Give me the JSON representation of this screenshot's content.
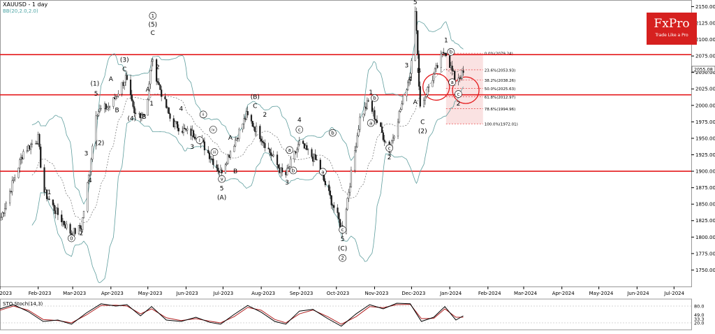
{
  "header": {
    "symbol_title": "XAUUSD - 1 day",
    "indicator": "BB(20,2.0,2.0)"
  },
  "logo": {
    "brand": "FxPro",
    "tagline": "Trade Like a Pro"
  },
  "sto_label": "STO Stoch(14,3)",
  "colors": {
    "candle": "#1a1a1a",
    "bb": "#5f9e9e",
    "bb_mid": "#555555",
    "sr_line": "#e41a1c",
    "fib_fill": "#f6cfcf",
    "sto_main": "#000000",
    "sto_signal": "#b22222"
  },
  "chart_data": {
    "type": "candlestick",
    "title": "XAUUSD - 1 day",
    "y_axis": {
      "range": [
        1725,
        2160
      ],
      "ticks": [
        "2150.00",
        "2125.00",
        "2100.00",
        "2075.00",
        "2050.00",
        "2025.00",
        "2000.00",
        "1975.00",
        "1950.00",
        "1925.00",
        "1900.00",
        "1875.00",
        "1850.00",
        "1825.00",
        "1800.00",
        "1775.00",
        "1750.00"
      ]
    },
    "x_axis": {
      "ticks": [
        "Jan-2023",
        "Feb-2023",
        "Mar-2023",
        "Apr-2023",
        "May-2023",
        "Jun-2023",
        "Jul-2023",
        "Aug-2023",
        "Sep-2023",
        "Oct-2023",
        "Nov-2023",
        "Dec-2023",
        "Jan-2024",
        "Feb-2024",
        "Mar-2024",
        "Apr-2024",
        "May-2024",
        "Jun-2024",
        "Jul-2024"
      ]
    },
    "price_path": [
      [
        "2023-01-01",
        1825
      ],
      [
        "2023-01-10",
        1875
      ],
      [
        "2023-01-20",
        1930
      ],
      [
        "2023-02-01",
        1950
      ],
      [
        "2023-02-05",
        1872
      ],
      [
        "2023-02-15",
        1840
      ],
      [
        "2023-02-28",
        1805
      ],
      [
        "2023-03-08",
        1815
      ],
      [
        "2023-03-15",
        1905
      ],
      [
        "2023-03-20",
        1990
      ],
      [
        "2023-04-01",
        2000
      ],
      [
        "2023-04-13",
        2042
      ],
      [
        "2023-04-20",
        1985
      ],
      [
        "2023-04-30",
        1990
      ],
      [
        "2023-05-04",
        2070
      ],
      [
        "2023-05-10",
        2030
      ],
      [
        "2023-05-20",
        1975
      ],
      [
        "2023-06-01",
        1960
      ],
      [
        "2023-06-10",
        1955
      ],
      [
        "2023-06-29",
        1898
      ],
      [
        "2023-07-20",
        1985
      ],
      [
        "2023-07-31",
        1955
      ],
      [
        "2023-08-20",
        1890
      ],
      [
        "2023-09-01",
        1942
      ],
      [
        "2023-09-15",
        1915
      ],
      [
        "2023-10-06",
        1810
      ],
      [
        "2023-10-20",
        1980
      ],
      [
        "2023-10-27",
        2005
      ],
      [
        "2023-11-13",
        1932
      ],
      [
        "2023-11-30",
        2050
      ],
      [
        "2023-12-04",
        2148
      ],
      [
        "2023-12-08",
        1998
      ],
      [
        "2023-12-28",
        2085
      ],
      [
        "2024-01-05",
        2040
      ],
      [
        "2024-01-12",
        2048
      ]
    ],
    "resistance_levels": [
      2077,
      2016,
      1900
    ],
    "fibonacci": {
      "from": 2079.24,
      "to": 1972.01,
      "levels": [
        {
          "label": "0.0%(2079.24)",
          "value": 2079.24
        },
        {
          "label": "23.6%(2053.93)",
          "value": 2053.93
        },
        {
          "label": "38.2%(2038.26)",
          "value": 2038.26
        },
        {
          "label": "50.0%(2025.63)",
          "value": 2025.63
        },
        {
          "label": "61.8%(2012.97)",
          "value": 2012.97
        },
        {
          "label": "78.6%(1994.96)",
          "value": 1994.96
        },
        {
          "label": "100.0%(1972.01)",
          "value": 1972.01
        }
      ]
    },
    "current_price": {
      "label": "2055.08",
      "value": 2055.08
    },
    "wave_labels": [
      {
        "text": "0",
        "date": "2023-02-28",
        "price": 1795,
        "circled": true
      },
      {
        "text": "1",
        "date": "2023-02-10",
        "price": 1865
      },
      {
        "text": "2",
        "date": "2023-03-08",
        "price": 1803
      },
      {
        "text": "3",
        "date": "2023-03-12",
        "price": 1924
      },
      {
        "text": "4",
        "date": "2023-03-15",
        "price": 1883
      },
      {
        "text": "(2)",
        "date": "2023-03-23",
        "price": 1940
      },
      {
        "text": "5",
        "date": "2023-03-20",
        "price": 2015
      },
      {
        "text": "(1)",
        "date": "2023-03-19",
        "price": 2030
      },
      {
        "text": "A",
        "date": "2023-04-01",
        "price": 2037
      },
      {
        "text": "B",
        "date": "2023-04-06",
        "price": 1990
      },
      {
        "text": "(4)",
        "date": "2023-04-18",
        "price": 1977
      },
      {
        "text": "C",
        "date": "2023-04-12",
        "price": 2052
      },
      {
        "text": "(3)",
        "date": "2023-04-12",
        "price": 2066
      },
      {
        "text": "B",
        "date": "2023-04-28",
        "price": 1980
      },
      {
        "text": "A",
        "date": "2023-05-01",
        "price": 2021
      },
      {
        "text": "1",
        "date": "2023-05-04",
        "price": 2000
      },
      {
        "text": "2",
        "date": "2023-05-09",
        "price": 2055
      },
      {
        "text": "1",
        "date": "2023-05-05",
        "price": 2133,
        "circled": true
      },
      {
        "text": "(5)",
        "date": "2023-05-05",
        "price": 2120
      },
      {
        "text": "C",
        "date": "2023-05-05",
        "price": 2107
      },
      {
        "text": "4",
        "date": "2023-05-28",
        "price": 1992
      },
      {
        "text": "3",
        "date": "2023-06-06",
        "price": 1934
      },
      {
        "text": "ii",
        "date": "2023-06-15",
        "price": 1983,
        "circled": true
      },
      {
        "text": "iv",
        "date": "2023-06-23",
        "price": 1960,
        "circled": true
      },
      {
        "text": "i",
        "date": "2023-06-12",
        "price": 1944,
        "circled": true
      },
      {
        "text": "iii",
        "date": "2023-06-24",
        "price": 1926,
        "circled": true
      },
      {
        "text": "A",
        "date": "2023-07-07",
        "price": 1948
      },
      {
        "text": "B",
        "date": "2023-07-11",
        "price": 1897
      },
      {
        "text": "v",
        "date": "2023-06-30",
        "price": 1885,
        "circled": true
      },
      {
        "text": "5",
        "date": "2023-06-30",
        "price": 1871
      },
      {
        "text": "(A)",
        "date": "2023-06-30",
        "price": 1857
      },
      {
        "text": "(B)",
        "date": "2023-07-27",
        "price": 2010
      },
      {
        "text": "C",
        "date": "2023-07-27",
        "price": 1996
      },
      {
        "text": "2",
        "date": "2023-08-04",
        "price": 1983
      },
      {
        "text": "4",
        "date": "2023-09-01",
        "price": 1975
      },
      {
        "text": "c",
        "date": "2023-09-01",
        "price": 1960,
        "circled": true
      },
      {
        "text": "a",
        "date": "2023-08-24",
        "price": 1929,
        "circled": true
      },
      {
        "text": "b",
        "date": "2023-08-27",
        "price": 1898,
        "circled": true
      },
      {
        "text": "3",
        "date": "2023-08-22",
        "price": 1880
      },
      {
        "text": "b",
        "date": "2023-09-28",
        "price": 1955,
        "circled": true
      },
      {
        "text": "a",
        "date": "2023-09-20",
        "price": 1896,
        "circled": true
      },
      {
        "text": "c",
        "date": "2023-10-06",
        "price": 1808,
        "circled": true
      },
      {
        "text": "5",
        "date": "2023-10-06",
        "price": 1794
      },
      {
        "text": "(C)",
        "date": "2023-10-06",
        "price": 1780
      },
      {
        "text": "2",
        "date": "2023-10-06",
        "price": 1765,
        "circled": true
      },
      {
        "text": "1",
        "date": "2023-10-29",
        "price": 2017
      },
      {
        "text": "b",
        "date": "2023-11-01",
        "price": 2008,
        "circled": true
      },
      {
        "text": "a",
        "date": "2023-10-29",
        "price": 1970,
        "circled": true
      },
      {
        "text": "c",
        "date": "2023-11-13",
        "price": 1932,
        "circled": true
      },
      {
        "text": "2",
        "date": "2023-11-13",
        "price": 1918
      },
      {
        "text": "3",
        "date": "2023-11-27",
        "price": 2058
      },
      {
        "text": "4",
        "date": "2023-11-30",
        "price": 2037
      },
      {
        "text": "A",
        "date": "2023-12-04",
        "price": 2002
      },
      {
        "text": "B",
        "date": "2023-12-07",
        "price": 2050
      },
      {
        "text": "(1)",
        "date": "2023-12-04",
        "price": 2167
      },
      {
        "text": "5",
        "date": "2023-12-04",
        "price": 2154
      },
      {
        "text": "C",
        "date": "2023-12-10",
        "price": 1972
      },
      {
        "text": "(2)",
        "date": "2023-12-10",
        "price": 1958
      },
      {
        "text": "1",
        "date": "2023-12-29",
        "price": 2096
      },
      {
        "text": "b",
        "date": "2024-01-02",
        "price": 2078,
        "circled": true
      },
      {
        "text": "a",
        "date": "2024-01-03",
        "price": 2032,
        "circled": true
      },
      {
        "text": "c",
        "date": "2024-01-08",
        "price": 2014,
        "circled": true
      },
      {
        "text": "2",
        "date": "2024-01-08",
        "price": 2000
      }
    ],
    "sto_axis": {
      "ticks": [
        "80.0",
        "49.0",
        "33.3",
        "20.0"
      ]
    },
    "sto_main": [
      [
        "2023-01-01",
        70
      ],
      [
        "2023-01-12",
        85
      ],
      [
        "2023-01-24",
        60
      ],
      [
        "2023-02-05",
        25
      ],
      [
        "2023-02-17",
        30
      ],
      [
        "2023-02-28",
        15
      ],
      [
        "2023-03-12",
        55
      ],
      [
        "2023-03-24",
        88
      ],
      [
        "2023-04-05",
        80
      ],
      [
        "2023-04-14",
        85
      ],
      [
        "2023-04-25",
        45
      ],
      [
        "2023-05-04",
        78
      ],
      [
        "2023-05-16",
        30
      ],
      [
        "2023-05-28",
        25
      ],
      [
        "2023-06-09",
        40
      ],
      [
        "2023-06-20",
        22
      ],
      [
        "2023-06-29",
        15
      ],
      [
        "2023-07-10",
        50
      ],
      [
        "2023-07-21",
        82
      ],
      [
        "2023-08-01",
        58
      ],
      [
        "2023-08-12",
        25
      ],
      [
        "2023-08-21",
        15
      ],
      [
        "2023-09-01",
        62
      ],
      [
        "2023-09-12",
        68
      ],
      [
        "2023-09-24",
        35
      ],
      [
        "2023-10-05",
        8
      ],
      [
        "2023-10-17",
        52
      ],
      [
        "2023-10-28",
        85
      ],
      [
        "2023-11-08",
        70
      ],
      [
        "2023-11-19",
        90
      ],
      [
        "2023-11-30",
        88
      ],
      [
        "2023-12-09",
        25
      ],
      [
        "2023-12-19",
        40
      ],
      [
        "2023-12-28",
        78
      ],
      [
        "2024-01-06",
        30
      ],
      [
        "2024-01-12",
        45
      ]
    ],
    "sto_signal": [
      [
        "2023-01-01",
        65
      ],
      [
        "2023-01-12",
        80
      ],
      [
        "2023-01-24",
        65
      ],
      [
        "2023-02-05",
        32
      ],
      [
        "2023-02-17",
        28
      ],
      [
        "2023-02-28",
        20
      ],
      [
        "2023-03-12",
        48
      ],
      [
        "2023-03-24",
        82
      ],
      [
        "2023-04-05",
        83
      ],
      [
        "2023-04-14",
        80
      ],
      [
        "2023-04-25",
        52
      ],
      [
        "2023-05-04",
        70
      ],
      [
        "2023-05-16",
        38
      ],
      [
        "2023-05-28",
        28
      ],
      [
        "2023-06-09",
        35
      ],
      [
        "2023-06-20",
        26
      ],
      [
        "2023-06-29",
        20
      ],
      [
        "2023-07-10",
        42
      ],
      [
        "2023-07-21",
        75
      ],
      [
        "2023-08-01",
        65
      ],
      [
        "2023-08-12",
        32
      ],
      [
        "2023-08-21",
        20
      ],
      [
        "2023-09-01",
        52
      ],
      [
        "2023-09-12",
        66
      ],
      [
        "2023-09-24",
        42
      ],
      [
        "2023-10-05",
        15
      ],
      [
        "2023-10-17",
        42
      ],
      [
        "2023-10-28",
        78
      ],
      [
        "2023-11-08",
        74
      ],
      [
        "2023-11-19",
        85
      ],
      [
        "2023-11-30",
        86
      ],
      [
        "2023-12-09",
        35
      ],
      [
        "2023-12-19",
        36
      ],
      [
        "2023-12-28",
        70
      ],
      [
        "2024-01-06",
        40
      ],
      [
        "2024-01-12",
        40
      ]
    ]
  }
}
